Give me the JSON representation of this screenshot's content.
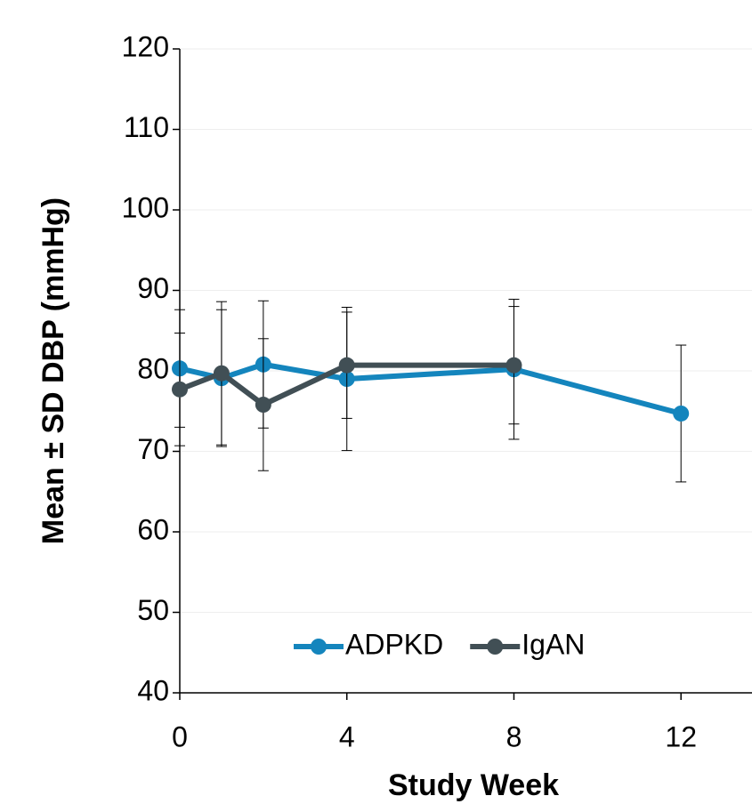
{
  "chart_data": {
    "type": "line",
    "x_label": "Study Week",
    "y_label": "Mean ± SD DBP (mmHg)",
    "xlim": [
      0,
      13.7
    ],
    "xticks": [
      0,
      4,
      8,
      12
    ],
    "ylim": [
      40,
      120
    ],
    "yticks": [
      40,
      50,
      60,
      70,
      80,
      90,
      100,
      110,
      120
    ],
    "grid": true,
    "legend": "bottom",
    "series": [
      {
        "name": "ADPKD",
        "color": "#1485bd",
        "x": [
          0,
          1,
          2,
          4,
          8,
          12
        ],
        "values": [
          80.3,
          79.1,
          80.8,
          79.0,
          80.2,
          74.7
        ],
        "errors": [
          7.3,
          8.5,
          7.9,
          8.9,
          8.7,
          8.5
        ]
      },
      {
        "name": "IgAN",
        "color": "#414f55",
        "x": [
          0,
          1,
          2,
          4,
          8
        ],
        "values": [
          77.7,
          79.7,
          75.8,
          80.7,
          80.7
        ],
        "errors": [
          7.0,
          8.9,
          8.2,
          6.6,
          7.3
        ]
      }
    ]
  }
}
